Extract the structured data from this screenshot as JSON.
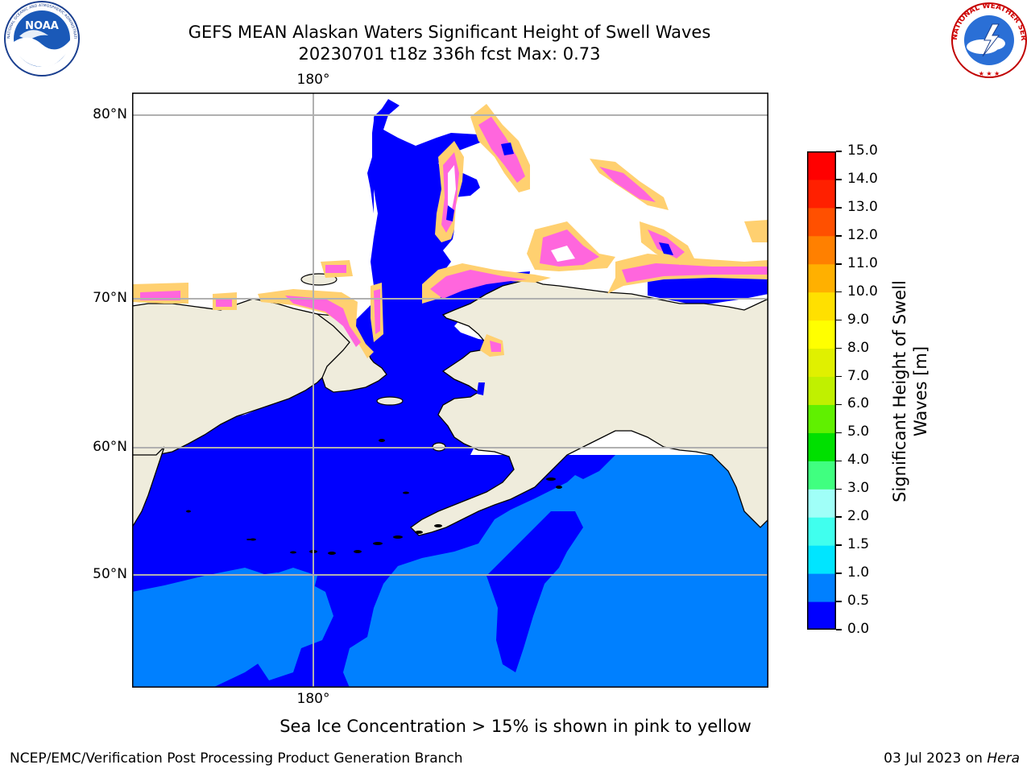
{
  "title": {
    "line1": "GEFS MEAN Alaskan Waters Significant Height of Swell Waves",
    "line2": "20230701 t18z 336h fcst    Max: 0.73"
  },
  "map": {
    "lon_labels": {
      "top": "180°",
      "bottom": "180°"
    },
    "lat_labels": [
      "80°N",
      "70°N",
      "60°N",
      "50°N"
    ],
    "colors": {
      "land": "#efecdc",
      "water_low": "#0000ff",
      "water_mid": "#0080ff",
      "ice_pink": "#ff66dd",
      "ice_yellow": "#ffd070"
    }
  },
  "colorbar": {
    "title_line1": "Significant Height of Swell",
    "title_line2": "Waves [m]",
    "ticks": [
      "0.0",
      "0.5",
      "1.0",
      "1.5",
      "2.0",
      "3.0",
      "4.0",
      "5.0",
      "6.0",
      "7.0",
      "8.0",
      "9.0",
      "10.0",
      "11.0",
      "12.0",
      "13.0",
      "14.0",
      "15.0"
    ],
    "colors": [
      "#0000ff",
      "#0080ff",
      "#00e5ff",
      "#40ffee",
      "#a0fff8",
      "#40ff80",
      "#00e000",
      "#60f000",
      "#c0f000",
      "#e0f000",
      "#ffff00",
      "#ffe000",
      "#ffb000",
      "#ff8000",
      "#ff5000",
      "#ff2000",
      "#ff0000"
    ]
  },
  "note": "Sea Ice Concentration > 15% is shown in pink to yellow",
  "footer": {
    "left": "NCEP/EMC/Verification Post Processing Product Generation Branch",
    "right_prefix": "03 Jul 2023 on ",
    "right_host": "Hera"
  },
  "logos": {
    "noaa": {
      "text": "NOAA",
      "ring_text": "NATIONAL OCEANIC AND ATMOSPHERIC ADMINISTRATION · U.S. DEPARTMENT OF COMMERCE"
    },
    "nws": {
      "ring_text": "NATIONAL WEATHER SERVICE"
    }
  }
}
